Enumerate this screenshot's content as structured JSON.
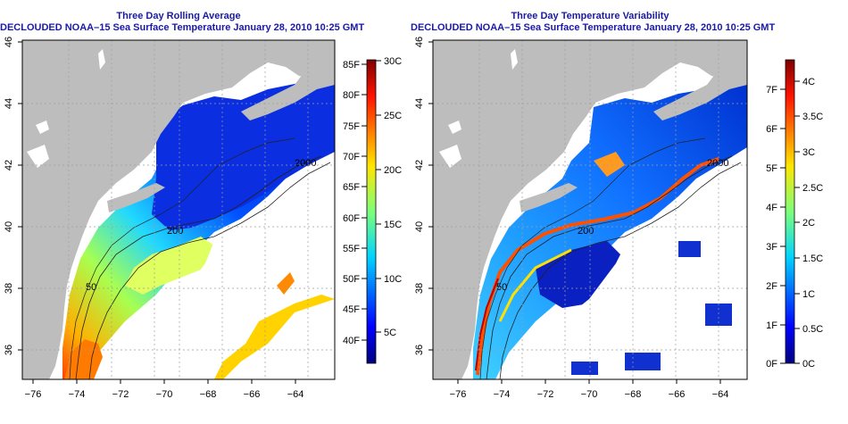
{
  "left_panel": {
    "title": "Three Day Rolling Average",
    "subtitle": "DECLOUDED NOAA–15 Sea Surface Temperature January 28, 2010 10:25 GMT",
    "colorbar_f": [
      "40F",
      "45F",
      "50F",
      "55F",
      "60F",
      "65F",
      "70F",
      "75F",
      "80F",
      "85F"
    ],
    "colorbar_c": [
      "5C",
      "10C",
      "15C",
      "20C",
      "25C",
      "30C"
    ],
    "contour_labels": [
      "200",
      "2000",
      "50"
    ]
  },
  "right_panel": {
    "title": "Three Day Temperature Variability",
    "subtitle": "DECLOUDED NOAA–15 Sea Surface Temperature January 28, 2010 10:25 GMT",
    "colorbar_f": [
      "0F",
      "1F",
      "2F",
      "3F",
      "4F",
      "5F",
      "6F",
      "7F"
    ],
    "colorbar_c": [
      "0C",
      "0.5C",
      "1C",
      "1.5C",
      "2C",
      "2.5C",
      "3C",
      "3.5C",
      "4C"
    ],
    "contour_labels": [
      "200",
      "2000",
      "50"
    ]
  },
  "axes": {
    "lon_ticks": [
      "−76",
      "−74",
      "−72",
      "−70",
      "−68",
      "−66",
      "−64"
    ],
    "lat_ticks": [
      "36",
      "38",
      "40",
      "42",
      "44",
      "46"
    ]
  },
  "colors": {
    "land": "#bdbdbd",
    "title": "#1a1aa6",
    "cloud": "#ffffff"
  }
}
